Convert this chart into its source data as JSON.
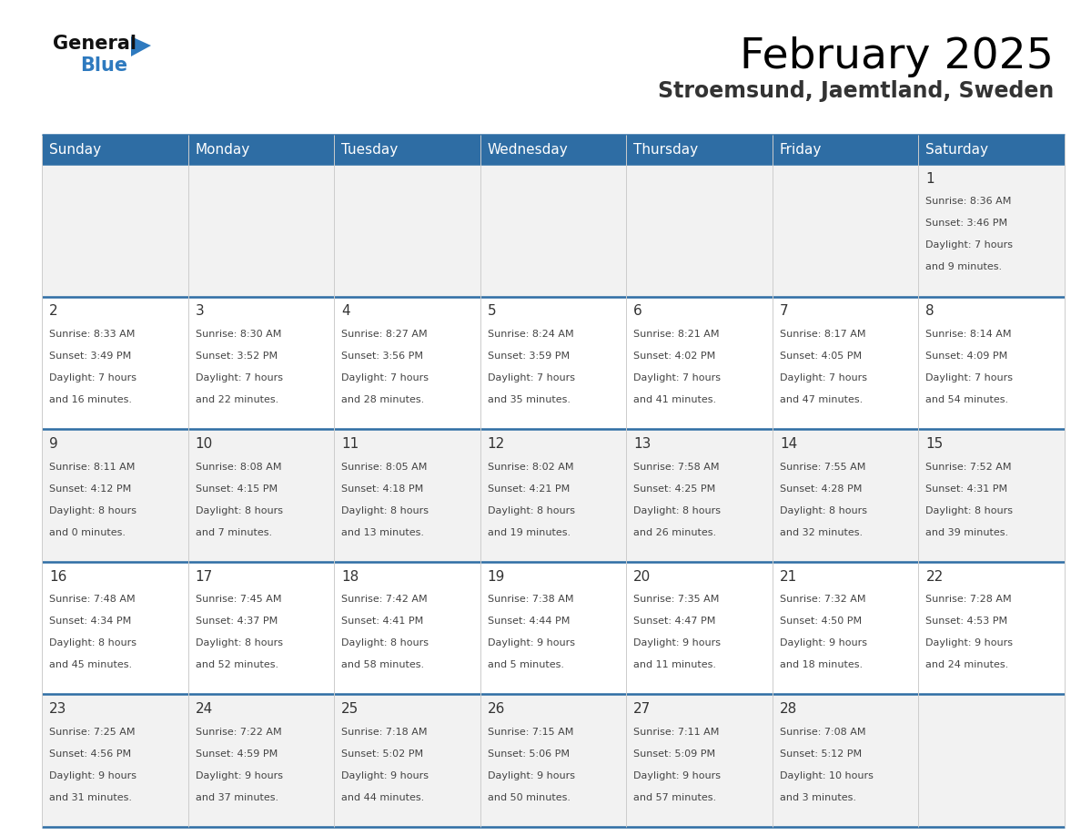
{
  "title": "February 2025",
  "subtitle": "Stroemsund, Jaemtland, Sweden",
  "header_color": "#2e6da4",
  "header_text_color": "#ffffff",
  "days_of_week": [
    "Sunday",
    "Monday",
    "Tuesday",
    "Wednesday",
    "Thursday",
    "Friday",
    "Saturday"
  ],
  "cell_bg_color_odd": "#f2f2f2",
  "cell_bg_color_even": "#ffffff",
  "grid_line_color": "#2e6da4",
  "cell_border_color": "#cccccc",
  "date_text_color": "#333333",
  "info_text_color": "#444444",
  "calendar": [
    [
      null,
      null,
      null,
      null,
      null,
      null,
      {
        "day": 1,
        "sunrise": "8:36 AM",
        "sunset": "3:46 PM",
        "daylight1": "7 hours",
        "daylight2": "and 9 minutes."
      }
    ],
    [
      {
        "day": 2,
        "sunrise": "8:33 AM",
        "sunset": "3:49 PM",
        "daylight1": "7 hours",
        "daylight2": "and 16 minutes."
      },
      {
        "day": 3,
        "sunrise": "8:30 AM",
        "sunset": "3:52 PM",
        "daylight1": "7 hours",
        "daylight2": "and 22 minutes."
      },
      {
        "day": 4,
        "sunrise": "8:27 AM",
        "sunset": "3:56 PM",
        "daylight1": "7 hours",
        "daylight2": "and 28 minutes."
      },
      {
        "day": 5,
        "sunrise": "8:24 AM",
        "sunset": "3:59 PM",
        "daylight1": "7 hours",
        "daylight2": "and 35 minutes."
      },
      {
        "day": 6,
        "sunrise": "8:21 AM",
        "sunset": "4:02 PM",
        "daylight1": "7 hours",
        "daylight2": "and 41 minutes."
      },
      {
        "day": 7,
        "sunrise": "8:17 AM",
        "sunset": "4:05 PM",
        "daylight1": "7 hours",
        "daylight2": "and 47 minutes."
      },
      {
        "day": 8,
        "sunrise": "8:14 AM",
        "sunset": "4:09 PM",
        "daylight1": "7 hours",
        "daylight2": "and 54 minutes."
      }
    ],
    [
      {
        "day": 9,
        "sunrise": "8:11 AM",
        "sunset": "4:12 PM",
        "daylight1": "8 hours",
        "daylight2": "and 0 minutes."
      },
      {
        "day": 10,
        "sunrise": "8:08 AM",
        "sunset": "4:15 PM",
        "daylight1": "8 hours",
        "daylight2": "and 7 minutes."
      },
      {
        "day": 11,
        "sunrise": "8:05 AM",
        "sunset": "4:18 PM",
        "daylight1": "8 hours",
        "daylight2": "and 13 minutes."
      },
      {
        "day": 12,
        "sunrise": "8:02 AM",
        "sunset": "4:21 PM",
        "daylight1": "8 hours",
        "daylight2": "and 19 minutes."
      },
      {
        "day": 13,
        "sunrise": "7:58 AM",
        "sunset": "4:25 PM",
        "daylight1": "8 hours",
        "daylight2": "and 26 minutes."
      },
      {
        "day": 14,
        "sunrise": "7:55 AM",
        "sunset": "4:28 PM",
        "daylight1": "8 hours",
        "daylight2": "and 32 minutes."
      },
      {
        "day": 15,
        "sunrise": "7:52 AM",
        "sunset": "4:31 PM",
        "daylight1": "8 hours",
        "daylight2": "and 39 minutes."
      }
    ],
    [
      {
        "day": 16,
        "sunrise": "7:48 AM",
        "sunset": "4:34 PM",
        "daylight1": "8 hours",
        "daylight2": "and 45 minutes."
      },
      {
        "day": 17,
        "sunrise": "7:45 AM",
        "sunset": "4:37 PM",
        "daylight1": "8 hours",
        "daylight2": "and 52 minutes."
      },
      {
        "day": 18,
        "sunrise": "7:42 AM",
        "sunset": "4:41 PM",
        "daylight1": "8 hours",
        "daylight2": "and 58 minutes."
      },
      {
        "day": 19,
        "sunrise": "7:38 AM",
        "sunset": "4:44 PM",
        "daylight1": "9 hours",
        "daylight2": "and 5 minutes."
      },
      {
        "day": 20,
        "sunrise": "7:35 AM",
        "sunset": "4:47 PM",
        "daylight1": "9 hours",
        "daylight2": "and 11 minutes."
      },
      {
        "day": 21,
        "sunrise": "7:32 AM",
        "sunset": "4:50 PM",
        "daylight1": "9 hours",
        "daylight2": "and 18 minutes."
      },
      {
        "day": 22,
        "sunrise": "7:28 AM",
        "sunset": "4:53 PM",
        "daylight1": "9 hours",
        "daylight2": "and 24 minutes."
      }
    ],
    [
      {
        "day": 23,
        "sunrise": "7:25 AM",
        "sunset": "4:56 PM",
        "daylight1": "9 hours",
        "daylight2": "and 31 minutes."
      },
      {
        "day": 24,
        "sunrise": "7:22 AM",
        "sunset": "4:59 PM",
        "daylight1": "9 hours",
        "daylight2": "and 37 minutes."
      },
      {
        "day": 25,
        "sunrise": "7:18 AM",
        "sunset": "5:02 PM",
        "daylight1": "9 hours",
        "daylight2": "and 44 minutes."
      },
      {
        "day": 26,
        "sunrise": "7:15 AM",
        "sunset": "5:06 PM",
        "daylight1": "9 hours",
        "daylight2": "and 50 minutes."
      },
      {
        "day": 27,
        "sunrise": "7:11 AM",
        "sunset": "5:09 PM",
        "daylight1": "9 hours",
        "daylight2": "and 57 minutes."
      },
      {
        "day": 28,
        "sunrise": "7:08 AM",
        "sunset": "5:12 PM",
        "daylight1": "10 hours",
        "daylight2": "and 3 minutes."
      },
      null
    ]
  ],
  "logo_general_color": "#111111",
  "logo_blue_color": "#2e7abf",
  "logo_triangle_color": "#2e7abf",
  "title_fontsize": 34,
  "subtitle_fontsize": 17,
  "header_fontsize": 11,
  "day_num_fontsize": 11,
  "info_fontsize": 8
}
